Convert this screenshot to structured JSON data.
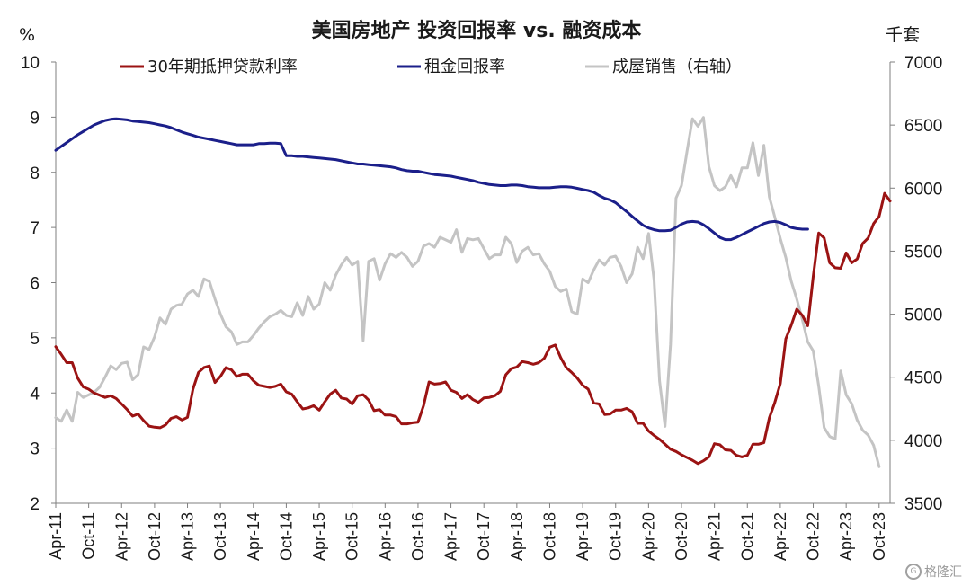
{
  "chart_data": {
    "type": "line",
    "title": "美国房地产 投资回报率 vs. 融资成本",
    "left_unit": "%",
    "right_unit": "千套",
    "ylim_left": [
      2,
      10
    ],
    "yticks_left": [
      "2",
      "3",
      "4",
      "5",
      "6",
      "7",
      "8",
      "9",
      "10"
    ],
    "ylim_right": [
      3500,
      7000
    ],
    "yticks_right": [
      "3500",
      "4000",
      "4500",
      "5000",
      "5500",
      "6000",
      "6500",
      "7000"
    ],
    "x_start": "Apr-11",
    "x_ticks": [
      "Apr-11",
      "Oct-11",
      "Apr-12",
      "Oct-12",
      "Apr-13",
      "Oct-13",
      "Apr-14",
      "Oct-14",
      "Apr-15",
      "Oct-15",
      "Apr-16",
      "Oct-16",
      "Apr-17",
      "Oct-17",
      "Apr-18",
      "Oct-18",
      "Apr-19",
      "Oct-19",
      "Apr-20",
      "Oct-20",
      "Apr-21",
      "Oct-21",
      "Apr-22",
      "Oct-22",
      "Apr-23",
      "Oct-23"
    ],
    "legend_position": "top",
    "grid": false,
    "series": [
      {
        "name": "30年期抵押贷款利率",
        "axis": "left",
        "color": "#9b1313",
        "values": [
          4.84,
          4.7,
          4.55,
          4.55,
          4.27,
          4.11,
          4.07,
          4.0,
          3.96,
          3.92,
          3.95,
          3.9,
          3.8,
          3.7,
          3.58,
          3.62,
          3.5,
          3.4,
          3.38,
          3.37,
          3.42,
          3.54,
          3.57,
          3.51,
          3.56,
          4.07,
          4.37,
          4.46,
          4.49,
          4.19,
          4.3,
          4.46,
          4.42,
          4.3,
          4.34,
          4.34,
          4.22,
          4.14,
          4.12,
          4.1,
          4.12,
          4.16,
          4.02,
          3.98,
          3.84,
          3.71,
          3.73,
          3.77,
          3.69,
          3.84,
          3.98,
          4.05,
          3.91,
          3.89,
          3.8,
          3.95,
          3.97,
          3.87,
          3.68,
          3.7,
          3.6,
          3.6,
          3.57,
          3.44,
          3.44,
          3.46,
          3.47,
          3.77,
          4.2,
          4.16,
          4.17,
          4.2,
          4.05,
          4.01,
          3.9,
          3.97,
          3.88,
          3.83,
          3.91,
          3.92,
          3.95,
          4.03,
          4.33,
          4.44,
          4.47,
          4.57,
          4.55,
          4.52,
          4.55,
          4.63,
          4.83,
          4.87,
          4.64,
          4.46,
          4.37,
          4.27,
          4.14,
          4.07,
          3.82,
          3.8,
          3.61,
          3.62,
          3.69,
          3.69,
          3.72,
          3.66,
          3.45,
          3.45,
          3.31,
          3.23,
          3.16,
          3.07,
          2.98,
          2.94,
          2.88,
          2.83,
          2.78,
          2.72,
          2.77,
          2.84,
          3.08,
          3.06,
          2.97,
          2.96,
          2.87,
          2.84,
          2.87,
          3.07,
          3.07,
          3.1,
          3.55,
          3.83,
          4.17,
          4.98,
          5.23,
          5.52,
          5.41,
          5.22,
          6.11,
          6.9,
          6.81,
          6.36,
          6.27,
          6.26,
          6.54,
          6.36,
          6.43,
          6.71,
          6.81,
          7.07,
          7.2,
          7.62,
          7.48
        ]
      },
      {
        "name": "租金回报率",
        "axis": "left",
        "color": "#1b1f8a",
        "values": [
          8.4,
          8.47,
          8.54,
          8.61,
          8.68,
          8.74,
          8.8,
          8.86,
          8.9,
          8.94,
          8.96,
          8.97,
          8.96,
          8.95,
          8.93,
          8.92,
          8.91,
          8.9,
          8.88,
          8.86,
          8.84,
          8.81,
          8.77,
          8.73,
          8.7,
          8.67,
          8.64,
          8.62,
          8.6,
          8.58,
          8.56,
          8.54,
          8.52,
          8.5,
          8.5,
          8.5,
          8.5,
          8.52,
          8.52,
          8.53,
          8.53,
          8.52,
          8.3,
          8.3,
          8.29,
          8.29,
          8.28,
          8.27,
          8.26,
          8.25,
          8.24,
          8.23,
          8.21,
          8.19,
          8.17,
          8.15,
          8.15,
          8.14,
          8.13,
          8.12,
          8.11,
          8.1,
          8.08,
          8.05,
          8.03,
          8.02,
          8.02,
          8.0,
          7.98,
          7.96,
          7.95,
          7.94,
          7.93,
          7.91,
          7.89,
          7.87,
          7.85,
          7.82,
          7.8,
          7.78,
          7.77,
          7.76,
          7.76,
          7.77,
          7.77,
          7.76,
          7.74,
          7.73,
          7.72,
          7.72,
          7.72,
          7.73,
          7.74,
          7.74,
          7.73,
          7.71,
          7.69,
          7.67,
          7.64,
          7.58,
          7.53,
          7.5,
          7.45,
          7.37,
          7.29,
          7.2,
          7.12,
          7.04,
          6.99,
          6.96,
          6.94,
          6.94,
          6.95,
          7.0,
          7.06,
          7.1,
          7.11,
          7.1,
          7.05,
          6.98,
          6.9,
          6.82,
          6.78,
          6.78,
          6.82,
          6.87,
          6.92,
          6.97,
          7.02,
          7.07,
          7.1,
          7.11,
          7.09,
          7.05,
          7.0,
          6.98,
          6.97,
          6.97
        ]
      },
      {
        "name": "成屋销售（右轴）",
        "axis": "right",
        "color": "#c4c4c4",
        "values": [
          4180,
          4150,
          4240,
          4150,
          4380,
          4340,
          4360,
          4380,
          4420,
          4500,
          4590,
          4560,
          4610,
          4620,
          4480,
          4520,
          4740,
          4720,
          4820,
          4970,
          4920,
          5040,
          5070,
          5080,
          5160,
          5190,
          5140,
          5280,
          5260,
          5120,
          5000,
          4900,
          4860,
          4760,
          4780,
          4780,
          4830,
          4890,
          4940,
          4980,
          5000,
          5030,
          4990,
          4980,
          5090,
          4990,
          5140,
          5040,
          5080,
          5250,
          5190,
          5310,
          5390,
          5450,
          5390,
          5420,
          4790,
          5420,
          5440,
          5270,
          5400,
          5480,
          5450,
          5490,
          5450,
          5380,
          5420,
          5540,
          5560,
          5530,
          5610,
          5590,
          5570,
          5670,
          5490,
          5600,
          5590,
          5600,
          5520,
          5440,
          5470,
          5470,
          5610,
          5560,
          5410,
          5500,
          5530,
          5470,
          5480,
          5400,
          5340,
          5220,
          5180,
          5200,
          5020,
          5000,
          5280,
          5250,
          5350,
          5430,
          5390,
          5450,
          5460,
          5380,
          5250,
          5320,
          5530,
          5440,
          5640,
          5270,
          4470,
          4110,
          4760,
          5920,
          6020,
          6290,
          6550,
          6490,
          6560,
          6170,
          6020,
          5980,
          6010,
          6100,
          6010,
          6160,
          6160,
          6360,
          6100,
          6340,
          5930,
          5770,
          5600,
          5450,
          5260,
          5120,
          4960,
          4780,
          4710,
          4430,
          4100,
          4030,
          4010,
          4550,
          4360,
          4290,
          4160,
          4080,
          4040,
          3960,
          3790
        ]
      }
    ]
  },
  "watermark": "格隆汇"
}
